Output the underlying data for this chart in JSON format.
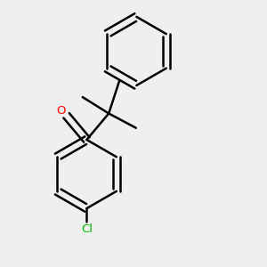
{
  "background_color": "#efefef",
  "line_color": "#000000",
  "oxygen_color": "#ff0000",
  "chlorine_color": "#00bb00",
  "line_width": 1.8,
  "figsize": [
    3.0,
    3.0
  ],
  "dpi": 100
}
